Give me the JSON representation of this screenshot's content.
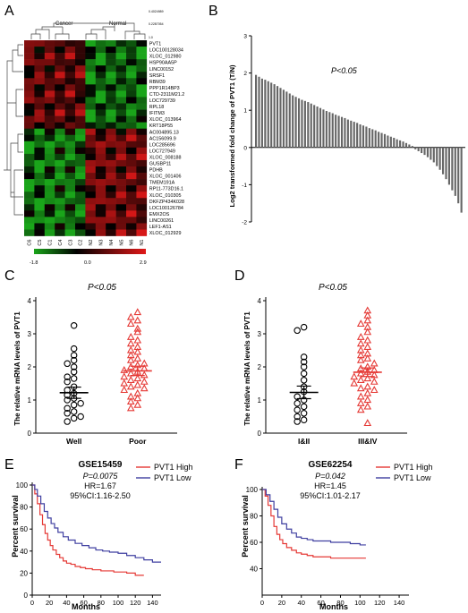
{
  "panels": {
    "A": {
      "label": "A",
      "chart_data": {
        "type": "heatmap",
        "column_groups": [
          "Cancer",
          "Normal"
        ],
        "columns": [
          "C6",
          "C5",
          "C1",
          "C4",
          "C3",
          "C2",
          "N2",
          "N3",
          "N4",
          "N5",
          "N6",
          "N1"
        ],
        "rows": [
          "PVT1",
          "LOC100128034",
          "XLOC_012980",
          "HSP90AA5P",
          "LINC00152",
          "SRSF1",
          "RBM39",
          "PPP1R14BP3",
          "CTD-2311M21.2",
          "LOC729739",
          "RPL18",
          "IFITM3",
          "XLOC_013964",
          "KRT18P55",
          "AC004895.13",
          "AC156099.9",
          "LOC285696",
          "LOC727949",
          "XLOC_008188",
          "GUSBP11",
          "PDHB",
          "XLOC_001406",
          "TMEM191A",
          "RP11-773D16.1",
          "XLOC_010305",
          "DKFZP434K028",
          "LOC100126784",
          "EMX2OS",
          "LINC00261",
          "LEF1-AS1",
          "XLOC_012929"
        ],
        "colorbar": {
          "min": -1.8,
          "mid": 0.0,
          "max": 2.9,
          "labels": [
            "-1.8",
            "0.0",
            "2.9"
          ],
          "colors": [
            "#1aa51a",
            "#000000",
            "#e01818"
          ]
        },
        "dendrogram_labels": [
          "0.4024989",
          "0.2287054",
          "1.0"
        ]
      }
    },
    "B": {
      "label": "B",
      "annotation": "P<0.05",
      "chart_data": {
        "type": "bar",
        "ylabel": "Log2 transformed fold change of PVT1 (T/N)",
        "ylim": [
          -2,
          3
        ],
        "yticks": [
          "3",
          "2",
          "1",
          "0",
          "-1",
          "-2"
        ],
        "values": [
          1.95,
          1.9,
          1.85,
          1.82,
          1.78,
          1.74,
          1.7,
          1.65,
          1.6,
          1.55,
          1.5,
          1.45,
          1.4,
          1.36,
          1.32,
          1.28,
          1.25,
          1.22,
          1.18,
          1.14,
          1.1,
          1.06,
          1.02,
          0.98,
          0.95,
          0.92,
          0.88,
          0.85,
          0.82,
          0.79,
          0.75,
          0.72,
          0.69,
          0.66,
          0.62,
          0.59,
          0.56,
          0.52,
          0.49,
          0.46,
          0.42,
          0.39,
          0.36,
          0.32,
          0.29,
          0.26,
          0.22,
          0.19,
          0.16,
          0.12,
          0.08,
          0.04,
          -0.05,
          -0.1,
          -0.15,
          -0.2,
          -0.26,
          -0.33,
          -0.4,
          -0.5,
          -0.6,
          -0.72,
          -0.85,
          -1.0,
          -1.15,
          -1.3,
          -1.5,
          -1.75
        ],
        "color": "#666666"
      }
    },
    "C": {
      "label": "C",
      "annotation": "P<0.05",
      "chart_data": {
        "type": "scatter",
        "ylabel": "The relative mRNA levels of PVT1",
        "ylim": [
          0,
          4
        ],
        "yticks": [
          "4",
          "3",
          "2",
          "1",
          "0"
        ],
        "categories": [
          "Well",
          "Poor"
        ],
        "series": [
          {
            "category": "Well",
            "marker": "circle",
            "color": "#000000",
            "mean": 1.22,
            "sem": 0.17,
            "values": [
              3.25,
              2.55,
              2.35,
              2.2,
              2.1,
              2.0,
              1.85,
              1.7,
              1.65,
              1.55,
              1.4,
              1.3,
              1.2,
              1.15,
              1.05,
              1.0,
              0.9,
              0.85,
              0.75,
              0.65,
              0.6,
              0.5,
              0.45,
              0.35
            ]
          },
          {
            "category": "Poor",
            "marker": "triangle",
            "color": "#e53935",
            "mean": 1.88,
            "sem": 0.14,
            "values": [
              3.65,
              3.5,
              3.4,
              3.3,
              3.15,
              3.05,
              2.9,
              2.8,
              2.7,
              2.6,
              2.5,
              2.45,
              2.35,
              2.25,
              2.2,
              2.1,
              2.05,
              2.0,
              1.95,
              1.9,
              1.85,
              1.8,
              1.75,
              1.7,
              1.65,
              1.6,
              1.55,
              1.5,
              1.45,
              1.4,
              1.35,
              1.3,
              1.2,
              1.1,
              1.05,
              0.95,
              0.85,
              0.75
            ]
          }
        ]
      }
    },
    "D": {
      "label": "D",
      "annotation": "P<0.05",
      "chart_data": {
        "type": "scatter",
        "ylabel": "The relative mRNA levels of PVT1",
        "ylim": [
          0,
          4
        ],
        "yticks": [
          "4",
          "3",
          "2",
          "1",
          "0"
        ],
        "categories": [
          "I&II",
          "III&IV"
        ],
        "series": [
          {
            "category": "I&II",
            "marker": "circle",
            "color": "#000000",
            "mean": 1.23,
            "sem": 0.19,
            "values": [
              3.2,
              3.1,
              2.3,
              2.15,
              2.0,
              1.8,
              1.6,
              1.4,
              1.25,
              1.1,
              1.0,
              0.9,
              0.8,
              0.7,
              0.6,
              0.5,
              0.4,
              0.35
            ]
          },
          {
            "category": "III&IV",
            "marker": "triangle",
            "color": "#e53935",
            "mean": 1.84,
            "sem": 0.13,
            "values": [
              3.7,
              3.55,
              3.4,
              3.3,
              3.2,
              3.05,
              2.9,
              2.8,
              2.7,
              2.6,
              2.5,
              2.4,
              2.35,
              2.25,
              2.2,
              2.1,
              2.0,
              1.95,
              1.9,
              1.85,
              1.8,
              1.75,
              1.7,
              1.65,
              1.6,
              1.55,
              1.5,
              1.4,
              1.35,
              1.3,
              1.2,
              1.1,
              1.0,
              0.9,
              0.8,
              0.7,
              0.3
            ]
          }
        ]
      }
    },
    "E": {
      "label": "E",
      "stats": {
        "title": "GSE15459",
        "p": "P=0.0075",
        "hr": "HR=1.67",
        "ci": "95%CI:1.16-2.50"
      },
      "chart_data": {
        "type": "line",
        "xlabel": "Months",
        "ylabel": "Percent survival",
        "xlim": [
          0,
          150
        ],
        "ylim": [
          0,
          100
        ],
        "xticks": [
          "0",
          "20",
          "40",
          "60",
          "80",
          "100",
          "120",
          "140"
        ],
        "yticks": [
          "0",
          "20",
          "40",
          "60",
          "80",
          "100"
        ],
        "series": [
          {
            "name": "PVT1 High",
            "color": "#e53935",
            "x": [
              0,
              3,
              6,
              9,
              12,
              15,
              18,
              21,
              24,
              28,
              32,
              36,
              40,
              45,
              50,
              56,
              62,
              70,
              80,
              95,
              110,
              120,
              130
            ],
            "y": [
              100,
              92,
              83,
              73,
              64,
              56,
              50,
              45,
              41,
              37,
              34,
              31,
              29,
              28,
              26,
              25,
              24,
              23,
              22,
              21,
              20,
              18,
              18
            ]
          },
          {
            "name": "PVT1 Low",
            "color": "#3f3fa0",
            "x": [
              0,
              3,
              6,
              10,
              14,
              18,
              22,
              26,
              30,
              36,
              42,
              50,
              58,
              66,
              74,
              82,
              90,
              100,
              110,
              120,
              130,
              140,
              150
            ],
            "y": [
              100,
              96,
              90,
              83,
              76,
              70,
              65,
              61,
              57,
              53,
              50,
              47,
              45,
              43,
              41,
              40,
              39,
              38,
              36,
              34,
              32,
              30,
              30
            ]
          }
        ]
      }
    },
    "F": {
      "label": "F",
      "stats": {
        "title": "GSE62254",
        "p": "P=0.042",
        "hr": "HR=1.45",
        "ci": "95%CI:1.01-2.17"
      },
      "chart_data": {
        "type": "line",
        "xlabel": "Months",
        "ylabel": "Percent survival",
        "xlim": [
          0,
          150
        ],
        "ylim": [
          20,
          100
        ],
        "xticks": [
          "0",
          "20",
          "40",
          "60",
          "80",
          "100",
          "120",
          "140"
        ],
        "yticks": [
          "40",
          "60",
          "80",
          "100"
        ],
        "series": [
          {
            "name": "PVT1 High",
            "color": "#e53935",
            "x": [
              0,
              3,
              6,
              9,
              12,
              15,
              18,
              21,
              25,
              30,
              35,
              40,
              46,
              52,
              60,
              70,
              80,
              90,
              100,
              106
            ],
            "y": [
              100,
              95,
              88,
              80,
              72,
              66,
              62,
              59,
              56,
              54,
              52,
              51,
              50,
              49,
              49,
              48,
              48,
              48,
              48,
              48
            ]
          },
          {
            "name": "PVT1 Low",
            "color": "#3f3fa0",
            "x": [
              0,
              4,
              8,
              12,
              16,
              20,
              25,
              30,
              35,
              40,
              46,
              52,
              60,
              70,
              80,
              90,
              100,
              106
            ],
            "y": [
              100,
              96,
              91,
              85,
              79,
              74,
              70,
              67,
              64,
              63,
              62,
              61,
              61,
              60,
              60,
              59,
              58,
              58
            ]
          }
        ]
      }
    }
  }
}
